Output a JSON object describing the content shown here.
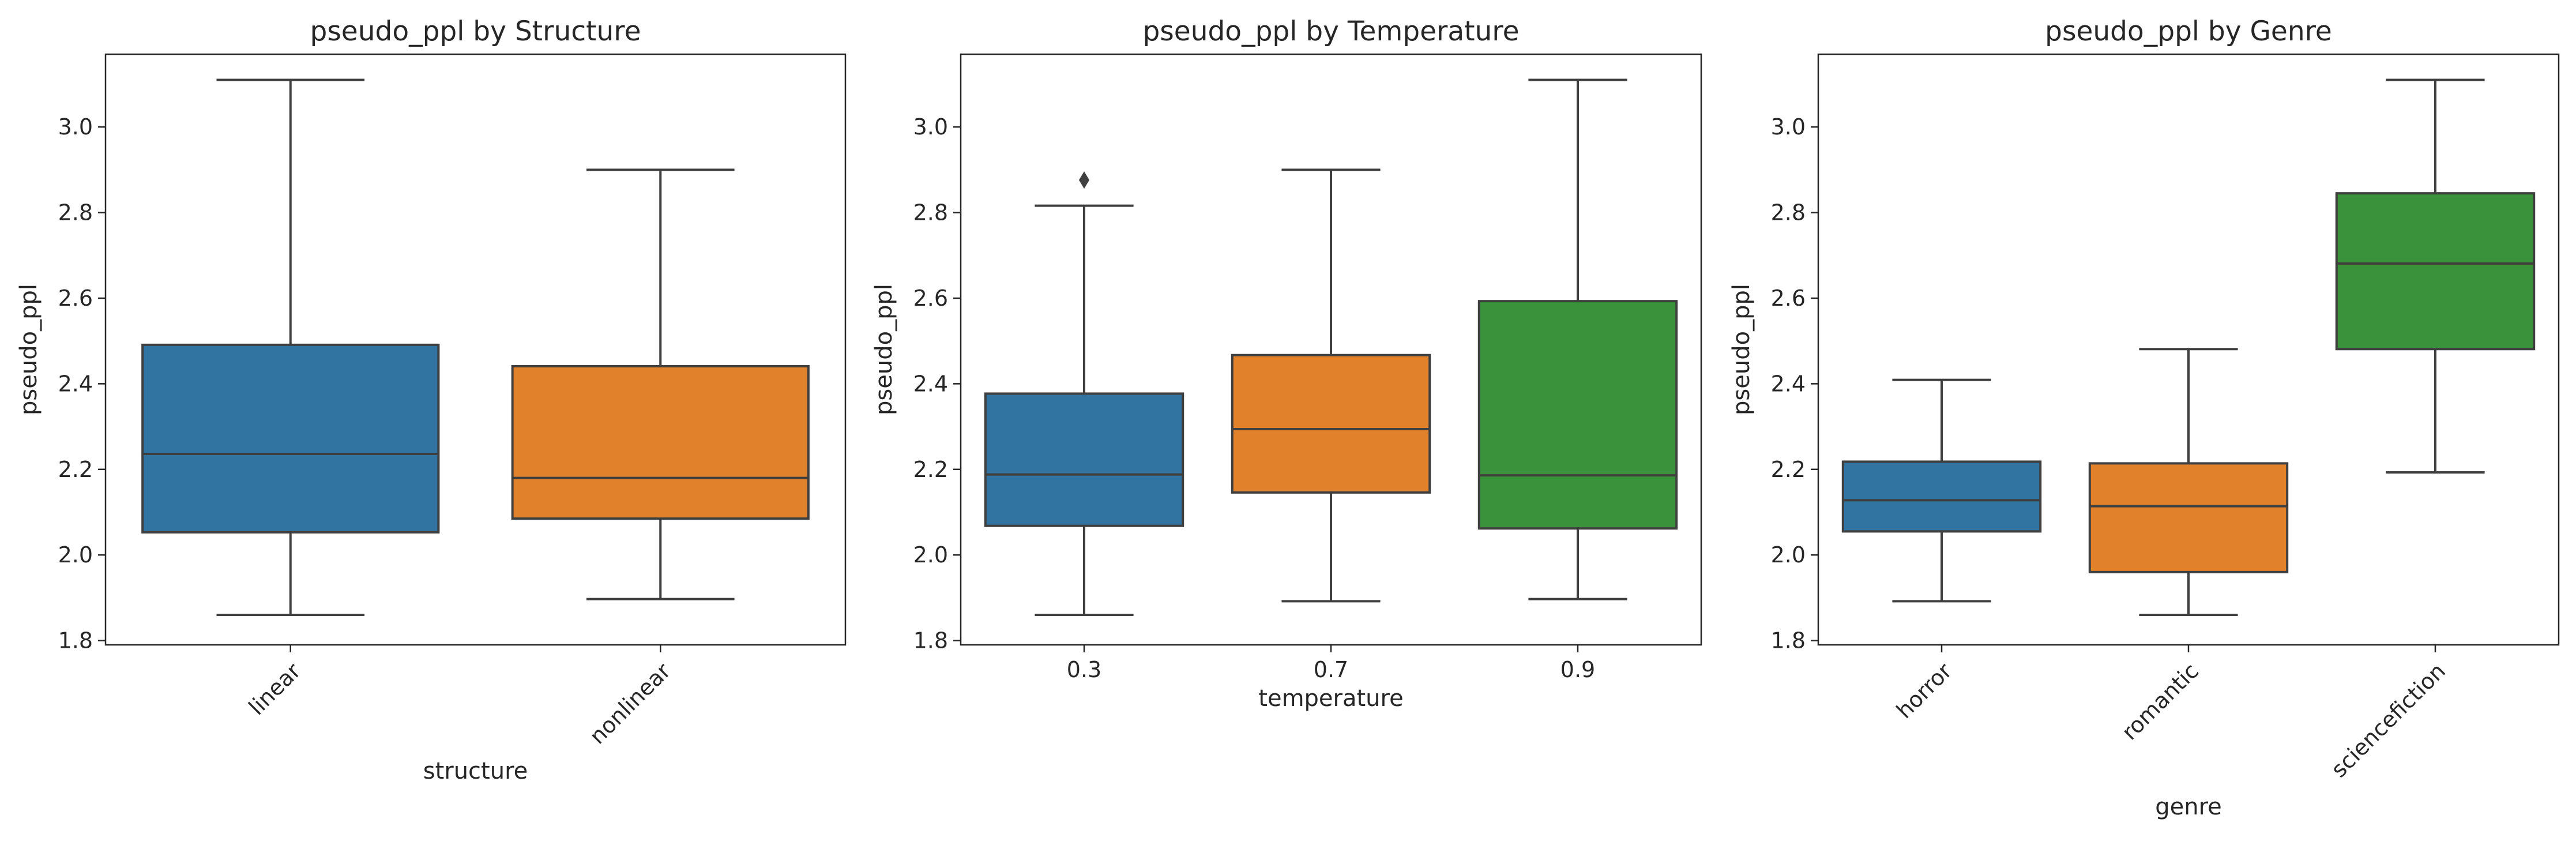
{
  "chart_data": [
    {
      "type": "box",
      "title": "pseudo_ppl by Structure",
      "xlabel": "structure",
      "ylabel": "pseudo_ppl",
      "ylim": [
        1.79,
        3.17
      ],
      "yticks": [
        "1.8",
        "2.0",
        "2.2",
        "2.4",
        "2.6",
        "2.8",
        "3.0"
      ],
      "rotate_x_labels": true,
      "categories": [
        "linear",
        "nonlinear"
      ],
      "colors": [
        "#3274a1",
        "#e1812c"
      ],
      "boxes": [
        {
          "whislo": 1.86,
          "q1": 2.053,
          "med": 2.236,
          "q3": 2.491,
          "whishi": 3.11,
          "fliers": []
        },
        {
          "whislo": 1.897,
          "q1": 2.085,
          "med": 2.18,
          "q3": 2.441,
          "whishi": 2.9,
          "fliers": []
        }
      ]
    },
    {
      "type": "box",
      "title": "pseudo_ppl by Temperature",
      "xlabel": "temperature",
      "ylabel": "pseudo_ppl",
      "ylim": [
        1.79,
        3.17
      ],
      "yticks": [
        "1.8",
        "2.0",
        "2.2",
        "2.4",
        "2.6",
        "2.8",
        "3.0"
      ],
      "rotate_x_labels": false,
      "categories": [
        "0.3",
        "0.7",
        "0.9"
      ],
      "colors": [
        "#3274a1",
        "#e1812c",
        "#3a923a"
      ],
      "boxes": [
        {
          "whislo": 1.86,
          "q1": 2.068,
          "med": 2.188,
          "q3": 2.377,
          "whishi": 2.816,
          "fliers": [
            2.876
          ]
        },
        {
          "whislo": 1.892,
          "q1": 2.146,
          "med": 2.294,
          "q3": 2.467,
          "whishi": 2.9,
          "fliers": []
        },
        {
          "whislo": 1.897,
          "q1": 2.062,
          "med": 2.186,
          "q3": 2.593,
          "whishi": 3.11,
          "fliers": []
        }
      ]
    },
    {
      "type": "box",
      "title": "pseudo_ppl by Genre",
      "xlabel": "genre",
      "ylabel": "pseudo_ppl",
      "ylim": [
        1.79,
        3.17
      ],
      "yticks": [
        "1.8",
        "2.0",
        "2.2",
        "2.4",
        "2.6",
        "2.8",
        "3.0"
      ],
      "rotate_x_labels": true,
      "categories": [
        "horror",
        "romantic",
        "sciencefiction"
      ],
      "colors": [
        "#3274a1",
        "#e1812c",
        "#3a923a"
      ],
      "boxes": [
        {
          "whislo": 1.892,
          "q1": 2.055,
          "med": 2.128,
          "q3": 2.218,
          "whishi": 2.409,
          "fliers": []
        },
        {
          "whislo": 1.86,
          "q1": 1.96,
          "med": 2.114,
          "q3": 2.214,
          "whishi": 2.481,
          "fliers": []
        },
        {
          "whislo": 2.193,
          "q1": 2.481,
          "med": 2.681,
          "q3": 2.845,
          "whishi": 3.11,
          "fliers": []
        }
      ]
    }
  ]
}
